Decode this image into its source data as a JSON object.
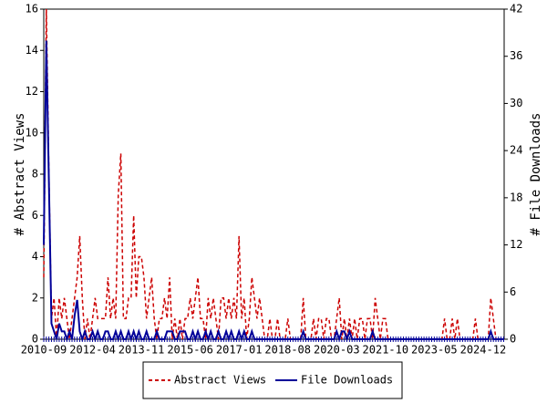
{
  "chart_data": {
    "type": "line",
    "ylabel": "# Abstract Views",
    "y2label": "# File Downloads",
    "categories": [
      "2010-09",
      null,
      null,
      null,
      null,
      null,
      null,
      null,
      null,
      null,
      null,
      null,
      null,
      null,
      null,
      null,
      null,
      null,
      null,
      "2012-04",
      null,
      null,
      null,
      null,
      null,
      null,
      null,
      null,
      null,
      null,
      null,
      null,
      null,
      null,
      null,
      null,
      null,
      null,
      "2013-11",
      null,
      null,
      null,
      null,
      null,
      null,
      null,
      null,
      null,
      null,
      null,
      null,
      null,
      null,
      null,
      null,
      null,
      null,
      "2015-06",
      null,
      null,
      null,
      null,
      null,
      null,
      null,
      null,
      null,
      null,
      null,
      null,
      null,
      null,
      null,
      null,
      null,
      null,
      "2017-01",
      null,
      null,
      null,
      null,
      null,
      null,
      null,
      null,
      null,
      null,
      null,
      null,
      null,
      null,
      null,
      null,
      null,
      null,
      "2018-08",
      null,
      null,
      null,
      null,
      null,
      null,
      null,
      null,
      null,
      null,
      null,
      null,
      null,
      null,
      null,
      null,
      null,
      null,
      "2020-03",
      null,
      null,
      null,
      null,
      null,
      null,
      null,
      null,
      null,
      null,
      null,
      null,
      null,
      null,
      null,
      null,
      null,
      null,
      "2021-10",
      null,
      null,
      null,
      null,
      null,
      null,
      null,
      null,
      null,
      null,
      null,
      null,
      null,
      null,
      null,
      null,
      null,
      null,
      "2023-05",
      null,
      null,
      null,
      null,
      null,
      null,
      null,
      null,
      null,
      null,
      null,
      null,
      null,
      null,
      null,
      null,
      null,
      null,
      "2024-12",
      null,
      null,
      null,
      null,
      null,
      null,
      null,
      null
    ],
    "series": [
      {
        "name": "Abstract Views",
        "color": "#cc0000",
        "dashed": true,
        "values": [
          3,
          16,
          8,
          1,
          2,
          0,
          2,
          1,
          2,
          1,
          0,
          1,
          2,
          3,
          5,
          2,
          0,
          1,
          0,
          1,
          2,
          1,
          1,
          1,
          1,
          3,
          1,
          2,
          1,
          7,
          9,
          1,
          1,
          2,
          2,
          6,
          2,
          4,
          4,
          3,
          1,
          2,
          3,
          1,
          0,
          1,
          1,
          2,
          1,
          3,
          0,
          1,
          0,
          1,
          0,
          1,
          1,
          2,
          1,
          2,
          3,
          1,
          1,
          0,
          2,
          1,
          2,
          1,
          0,
          2,
          2,
          1,
          2,
          1,
          2,
          1,
          5,
          1,
          2,
          0,
          1,
          3,
          2,
          1,
          2,
          1,
          0,
          0,
          1,
          0,
          0,
          1,
          0,
          0,
          0,
          1,
          0,
          0,
          0,
          0,
          0,
          2,
          0,
          0,
          0,
          1,
          0,
          1,
          1,
          0,
          1,
          1,
          0,
          0,
          1,
          2,
          0,
          1,
          0,
          1,
          0,
          1,
          0,
          1,
          1,
          0,
          1,
          1,
          0,
          2,
          1,
          0,
          1,
          1,
          0,
          0,
          0,
          0,
          0,
          0,
          0,
          0,
          0,
          0,
          0,
          0,
          0,
          0,
          0,
          0,
          0,
          0,
          0,
          0,
          0,
          0,
          1,
          0,
          0,
          1,
          0,
          1,
          0,
          0,
          0,
          0,
          0,
          0,
          1,
          0,
          0,
          0,
          0,
          0,
          2,
          1,
          0,
          0,
          0,
          0
        ]
      },
      {
        "name": "File Downloads",
        "color": "#000099",
        "dashed": false,
        "axis": "y2",
        "values": [
          12,
          38,
          20,
          2,
          1,
          0,
          2,
          1,
          1,
          0,
          1,
          0,
          3,
          5,
          1,
          0,
          1,
          0,
          0,
          1,
          0,
          1,
          0,
          0,
          1,
          1,
          0,
          0,
          1,
          0,
          1,
          0,
          0,
          1,
          0,
          1,
          0,
          1,
          0,
          0,
          1,
          0,
          0,
          0,
          1,
          0,
          0,
          0,
          1,
          1,
          1,
          0,
          0,
          1,
          1,
          1,
          0,
          0,
          1,
          0,
          1,
          0,
          0,
          1,
          0,
          1,
          0,
          0,
          1,
          0,
          0,
          1,
          0,
          1,
          0,
          0,
          1,
          0,
          1,
          0,
          0,
          1,
          0,
          0,
          0,
          0,
          0,
          0,
          0,
          0,
          0,
          0,
          0,
          0,
          0,
          0,
          0,
          0,
          0,
          0,
          0,
          1,
          0,
          0,
          0,
          0,
          0,
          0,
          0,
          0,
          0,
          0,
          0,
          0,
          1,
          0,
          1,
          1,
          0,
          1,
          0,
          0,
          0,
          0,
          0,
          0,
          0,
          0,
          1,
          0,
          0,
          0,
          0,
          0,
          0,
          0,
          0,
          0,
          0,
          0,
          0,
          0,
          0,
          0,
          0,
          0,
          0,
          0,
          0,
          0,
          0,
          0,
          0,
          0,
          0,
          0,
          0,
          0,
          0,
          0,
          0,
          0,
          0,
          0,
          0,
          0,
          0,
          0,
          0,
          0,
          0,
          0,
          0,
          0,
          1,
          0,
          0,
          0,
          0,
          0
        ]
      }
    ],
    "ylim": [
      0,
      16
    ],
    "yticks": [
      0,
      2,
      4,
      6,
      8,
      10,
      12,
      14,
      16
    ],
    "y2lim": [
      0,
      42
    ],
    "y2ticks": [
      0,
      6,
      12,
      18,
      24,
      30,
      36,
      42
    ]
  }
}
